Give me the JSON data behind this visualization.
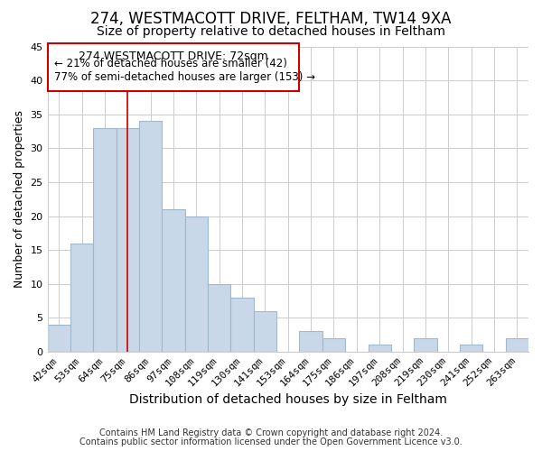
{
  "title": "274, WESTMACOTT DRIVE, FELTHAM, TW14 9XA",
  "subtitle": "Size of property relative to detached houses in Feltham",
  "xlabel": "Distribution of detached houses by size in Feltham",
  "ylabel": "Number of detached properties",
  "bar_labels": [
    "42sqm",
    "53sqm",
    "64sqm",
    "75sqm",
    "86sqm",
    "97sqm",
    "108sqm",
    "119sqm",
    "130sqm",
    "141sqm",
    "153sqm",
    "164sqm",
    "175sqm",
    "186sqm",
    "197sqm",
    "208sqm",
    "219sqm",
    "230sqm",
    "241sqm",
    "252sqm",
    "263sqm"
  ],
  "bar_values": [
    4,
    16,
    33,
    33,
    34,
    21,
    20,
    10,
    8,
    6,
    0,
    3,
    2,
    0,
    1,
    0,
    2,
    0,
    1,
    0,
    2
  ],
  "bar_color": "#c8d8e8",
  "bar_edge_color": "#a0b8cc",
  "grid_color": "#cccccc",
  "annotation_box_edge": "#cc0000",
  "vline_color": "#cc0000",
  "vline_x": 3.0,
  "annotation_title": "274 WESTMACOTT DRIVE: 72sqm",
  "annotation_line1": "← 21% of detached houses are smaller (42)",
  "annotation_line2": "77% of semi-detached houses are larger (153) →",
  "footer1": "Contains HM Land Registry data © Crown copyright and database right 2024.",
  "footer2": "Contains public sector information licensed under the Open Government Licence v3.0.",
  "ylim": [
    0,
    45
  ],
  "yticks": [
    0,
    5,
    10,
    15,
    20,
    25,
    30,
    35,
    40,
    45
  ],
  "title_fontsize": 12,
  "subtitle_fontsize": 10,
  "xlabel_fontsize": 10,
  "ylabel_fontsize": 9,
  "tick_fontsize": 8,
  "annotation_fontsize": 9,
  "footer_fontsize": 7,
  "background_color": "#ffffff"
}
